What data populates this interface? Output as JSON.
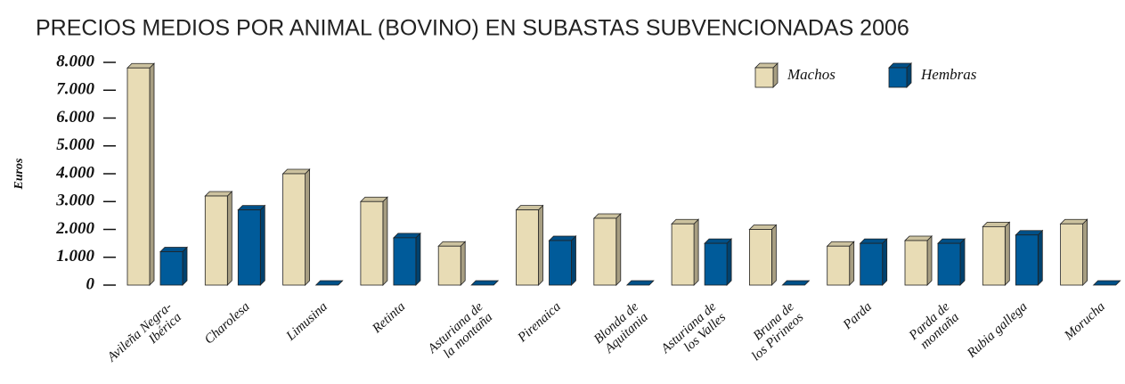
{
  "chart_data": {
    "type": "bar3d",
    "title": "PRECIOS MEDIOS POR ANIMAL (BOVINO) EN SUBASTAS SUBVENCIONADAS 2006",
    "y_label": "Euros",
    "categories": [
      [
        "Avileña Negra-",
        "Ibérica"
      ],
      [
        "Charolesa"
      ],
      [
        "Limusina"
      ],
      [
        "Retinta"
      ],
      [
        "Asturiana de",
        "la montaña"
      ],
      [
        "Pirenaica"
      ],
      [
        "Blonda de",
        "Aquitania"
      ],
      [
        "Asturiana de",
        "los Valles"
      ],
      [
        "Bruna de",
        "los Pirineos"
      ],
      [
        "Parda"
      ],
      [
        "Parda de",
        "montaña"
      ],
      [
        "Rubia gallega"
      ],
      [
        "Morucha"
      ]
    ],
    "series": [
      {
        "name": "Machos",
        "color": "#e8dcb5",
        "values": [
          7800,
          3200,
          4000,
          3000,
          1400,
          2700,
          2400,
          2200,
          2000,
          1400,
          1600,
          2100,
          2200
        ]
      },
      {
        "name": "Hembras",
        "color": "#005b9a",
        "values": [
          1200,
          2700,
          0,
          1700,
          0,
          1600,
          0,
          1500,
          0,
          1500,
          1500,
          1800,
          0
        ]
      }
    ],
    "ylim": [
      0,
      8000
    ],
    "yticks": [
      0,
      {
        "value": 1000,
        "label": "1.000"
      },
      {
        "value": 2000,
        "label": "2.000"
      },
      {
        "value": 3000,
        "label": "3.000"
      },
      {
        "value": 4000,
        "label": "4.000"
      },
      {
        "value": 5000,
        "label": "5.000"
      },
      {
        "value": 6000,
        "label": "6.000"
      },
      {
        "value": 7000,
        "label": "7.000"
      },
      {
        "value": 8000,
        "label": "8.000"
      }
    ],
    "legend": "top-right"
  }
}
